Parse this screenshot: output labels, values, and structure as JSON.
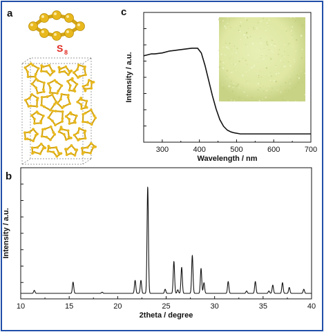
{
  "figure": {
    "panels": {
      "a": {
        "letter": "a",
        "molecule_label": "S",
        "molecule_subscript": "8"
      },
      "b": {
        "letter": "b"
      },
      "c": {
        "letter": "c"
      }
    },
    "colors": {
      "frame": "#1f4ea8",
      "sulfur_atom": "#e8b81d",
      "sulfur_bond": "#d4a514",
      "label_red": "#e0271f",
      "powder": "#dfe7a3",
      "line": "#111111"
    }
  },
  "chart_data": [
    {
      "id": "uv-vis",
      "type": "line",
      "xlabel": "Wavelength / nm",
      "ylabel": "Intensity / a.u.",
      "xlim": [
        250,
        700
      ],
      "xticks": [
        300,
        400,
        500,
        600,
        700
      ],
      "x": [
        250,
        260,
        270,
        280,
        300,
        320,
        340,
        360,
        380,
        395,
        405,
        415,
        425,
        435,
        445,
        455,
        465,
        475,
        485,
        495,
        510,
        530,
        560,
        600,
        650,
        700
      ],
      "y": [
        0.82,
        0.83,
        0.84,
        0.84,
        0.85,
        0.87,
        0.88,
        0.89,
        0.9,
        0.9,
        0.85,
        0.72,
        0.56,
        0.4,
        0.26,
        0.15,
        0.08,
        0.04,
        0.02,
        0.01,
        0.0,
        0.0,
        0.0,
        0.0,
        0.0,
        0.0
      ],
      "ylim": [
        0,
        1
      ],
      "inset": "photo of sulfur powder"
    },
    {
      "id": "xrd",
      "type": "line",
      "xlabel": "2theta / degree",
      "ylabel": "Intensity / a.u.",
      "xlim": [
        10,
        40
      ],
      "xticks": [
        10,
        15,
        20,
        25,
        30,
        35,
        40
      ],
      "ylim": [
        0,
        1
      ],
      "peaks": [
        {
          "x": 11.4,
          "y": 0.025
        },
        {
          "x": 15.4,
          "y": 0.095
        },
        {
          "x": 18.4,
          "y": 0.01
        },
        {
          "x": 21.8,
          "y": 0.11
        },
        {
          "x": 22.4,
          "y": 0.11
        },
        {
          "x": 23.1,
          "y": 0.9
        },
        {
          "x": 24.9,
          "y": 0.035
        },
        {
          "x": 25.8,
          "y": 0.27
        },
        {
          "x": 26.2,
          "y": 0.03
        },
        {
          "x": 26.6,
          "y": 0.22
        },
        {
          "x": 27.7,
          "y": 0.32
        },
        {
          "x": 28.6,
          "y": 0.21
        },
        {
          "x": 28.9,
          "y": 0.09
        },
        {
          "x": 31.4,
          "y": 0.1
        },
        {
          "x": 33.3,
          "y": 0.02
        },
        {
          "x": 34.2,
          "y": 0.1
        },
        {
          "x": 35.6,
          "y": 0.02
        },
        {
          "x": 36.0,
          "y": 0.07
        },
        {
          "x": 37.0,
          "y": 0.09
        },
        {
          "x": 37.7,
          "y": 0.05
        },
        {
          "x": 39.2,
          "y": 0.035
        }
      ]
    }
  ]
}
